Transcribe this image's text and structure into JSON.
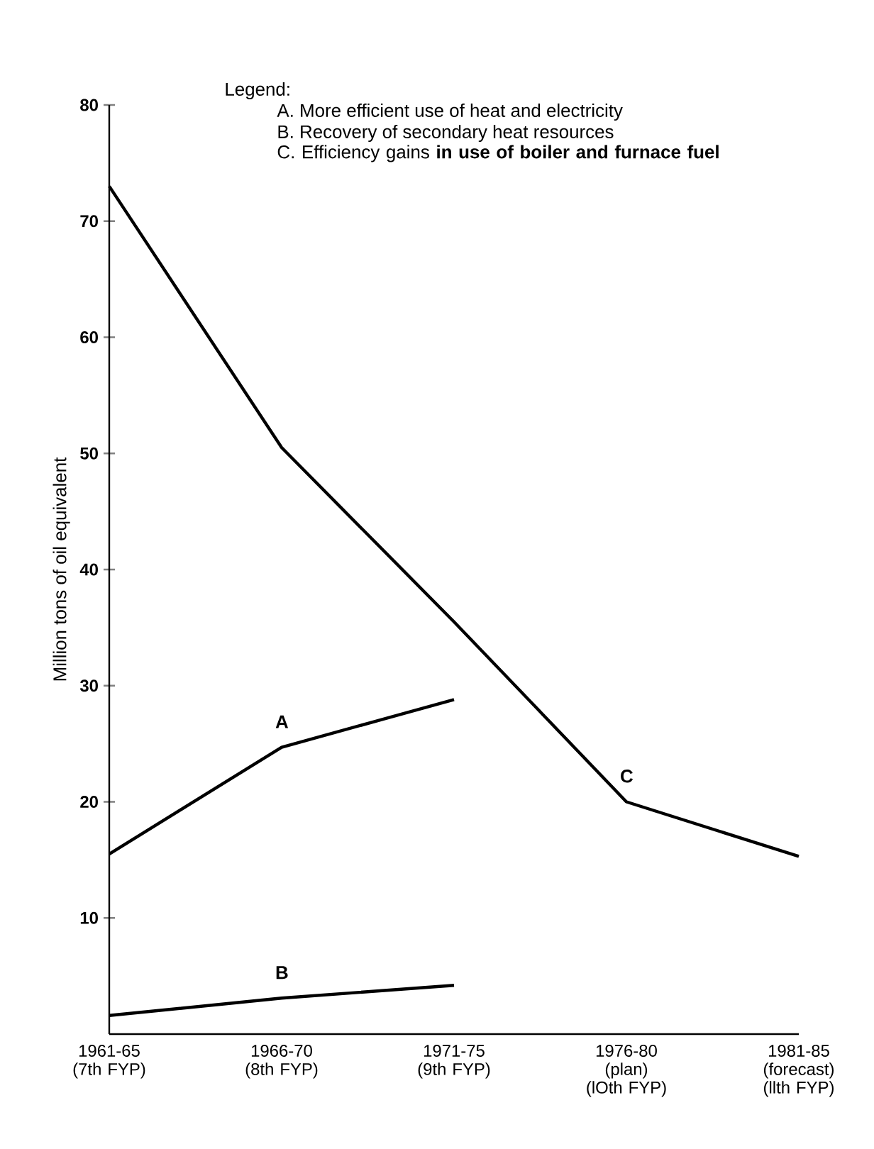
{
  "chart_data": {
    "type": "line",
    "ylabel": "Million tons of oil equivalent",
    "categories": [
      "1961-65 (7th FYP)",
      "1966-70 (8th FYP)",
      "1971-75 (9th FYP)",
      "1976-80 (plan) (lOth FYP)",
      "1981-85 (forecast) (llth FYP)"
    ],
    "series": [
      {
        "name": "A",
        "color": "#000000",
        "values": [
          15.5,
          24.7,
          28.8,
          null,
          null
        ]
      },
      {
        "name": "B",
        "color": "#000000",
        "values": [
          1.6,
          3.1,
          4.2,
          null,
          null
        ]
      },
      {
        "name": "C",
        "color": "#000000",
        "values": [
          73,
          50.5,
          35.5,
          20,
          15.3
        ]
      }
    ],
    "ylim": [
      0,
      80
    ],
    "yticks": [
      10,
      20,
      30,
      40,
      50,
      60,
      70,
      80
    ],
    "grid": false,
    "legend": false,
    "marker": "none",
    "line_style": "solid",
    "annotations": [
      "Legend:",
      "A. More efficient use of heat and electricity",
      "B. Recovery of secondary heat resources",
      "C. Efficiency gains **in use of boiler and furnace fuel**"
    ]
  }
}
